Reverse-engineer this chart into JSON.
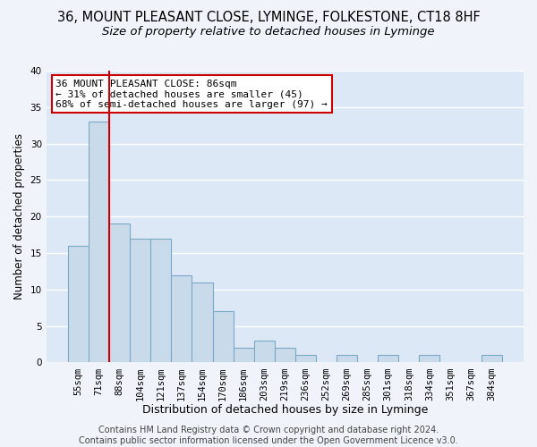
{
  "title1": "36, MOUNT PLEASANT CLOSE, LYMINGE, FOLKESTONE, CT18 8HF",
  "title2": "Size of property relative to detached houses in Lyminge",
  "xlabel": "Distribution of detached houses by size in Lyminge",
  "ylabel": "Number of detached properties",
  "categories": [
    "55sqm",
    "71sqm",
    "88sqm",
    "104sqm",
    "121sqm",
    "137sqm",
    "154sqm",
    "170sqm",
    "186sqm",
    "203sqm",
    "219sqm",
    "236sqm",
    "252sqm",
    "269sqm",
    "285sqm",
    "301sqm",
    "318sqm",
    "334sqm",
    "351sqm",
    "367sqm",
    "384sqm"
  ],
  "values": [
    16,
    33,
    19,
    17,
    17,
    12,
    11,
    7,
    2,
    3,
    2,
    1,
    0,
    1,
    0,
    1,
    0,
    1,
    0,
    0,
    1
  ],
  "bar_color": "#c9daea",
  "bar_edge_color": "#7aaac8",
  "bar_linewidth": 0.8,
  "annotation_text": "36 MOUNT PLEASANT CLOSE: 86sqm\n← 31% of detached houses are smaller (45)\n68% of semi-detached houses are larger (97) →",
  "annotation_box_color": "#ffffff",
  "annotation_box_edge": "#cc0000",
  "ylim": [
    0,
    40
  ],
  "yticks": [
    0,
    5,
    10,
    15,
    20,
    25,
    30,
    35,
    40
  ],
  "footer": "Contains HM Land Registry data © Crown copyright and database right 2024.\nContains public sector information licensed under the Open Government Licence v3.0.",
  "background_color": "#dce8f5",
  "plot_bg_color": "#dce8f5",
  "grid_color": "#ffffff",
  "fig_bg_color": "#f0f4fa",
  "title1_fontsize": 10.5,
  "title2_fontsize": 9.5,
  "xlabel_fontsize": 9,
  "ylabel_fontsize": 8.5,
  "tick_fontsize": 7.5,
  "annotation_fontsize": 8,
  "footer_fontsize": 7
}
